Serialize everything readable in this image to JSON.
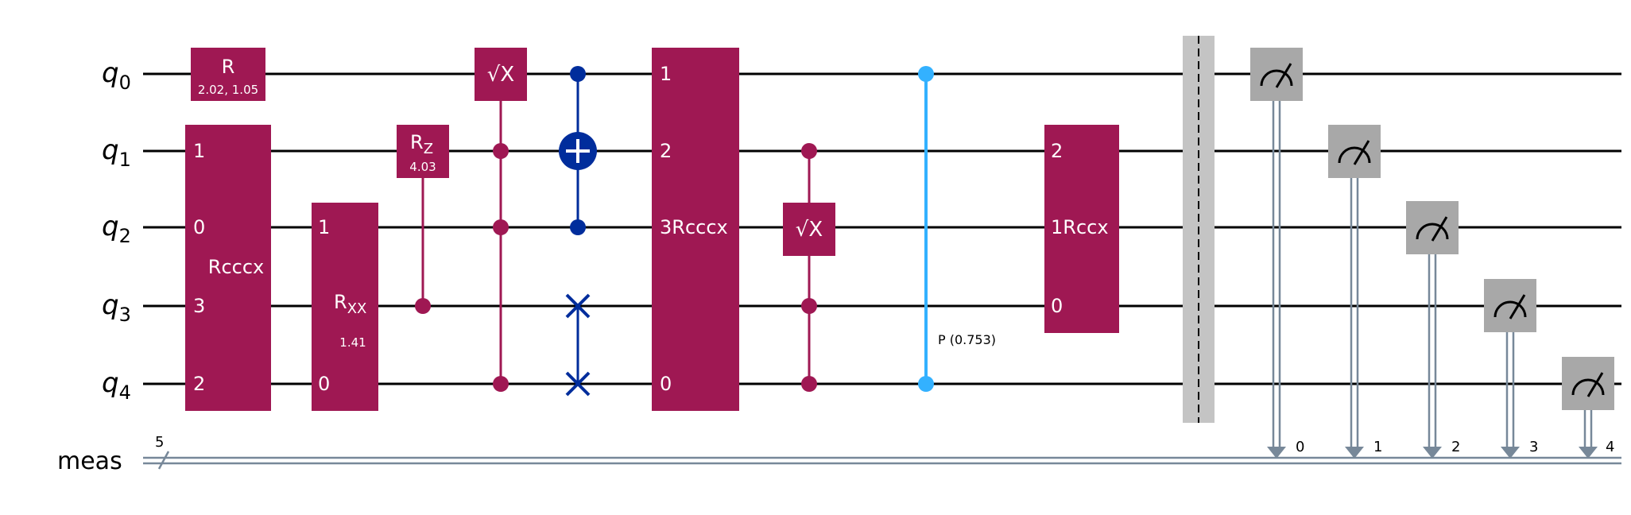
{
  "wires": {
    "qubits": [
      {
        "letter": "q",
        "index": "0"
      },
      {
        "letter": "q",
        "index": "1"
      },
      {
        "letter": "q",
        "index": "2"
      },
      {
        "letter": "q",
        "index": "3"
      },
      {
        "letter": "q",
        "index": "4"
      }
    ],
    "classical": {
      "label": "meas",
      "bundle_size": "5"
    }
  },
  "colors": {
    "gate": "#9f1853",
    "cnot": "#002d9c",
    "phase": "#33b1ff",
    "barrier": "#c4c4c4",
    "measure_box": "#a8a8a8",
    "classical_wire": "#778899",
    "wire": "#000000",
    "gate_text": "#ffffff"
  },
  "gates": {
    "r_gate": {
      "label": "R",
      "params": "2.02, 1.05"
    },
    "rcccx_1": {
      "label": "Rcccx",
      "pins": [
        "1",
        "0",
        "3",
        "2"
      ]
    },
    "rxx": {
      "label": "R",
      "sub": "XX",
      "param": "1.41",
      "pins": [
        "1",
        "0"
      ]
    },
    "rz": {
      "label": "R",
      "sub": "Z",
      "param": "4.03"
    },
    "sx_1": {
      "label": "√X"
    },
    "rcccx_2": {
      "pins": [
        "1",
        "2",
        "3",
        "0"
      ],
      "label": "Rcccx"
    },
    "sx_2": {
      "label": "√X"
    },
    "phase": {
      "label": "P (0.753)"
    },
    "rccx": {
      "pins": [
        "2",
        "1",
        "0"
      ],
      "label": "Rccx"
    }
  },
  "measurements": {
    "bit_labels": [
      "0",
      "1",
      "2",
      "3",
      "4"
    ],
    "icon": "meter-icon"
  }
}
